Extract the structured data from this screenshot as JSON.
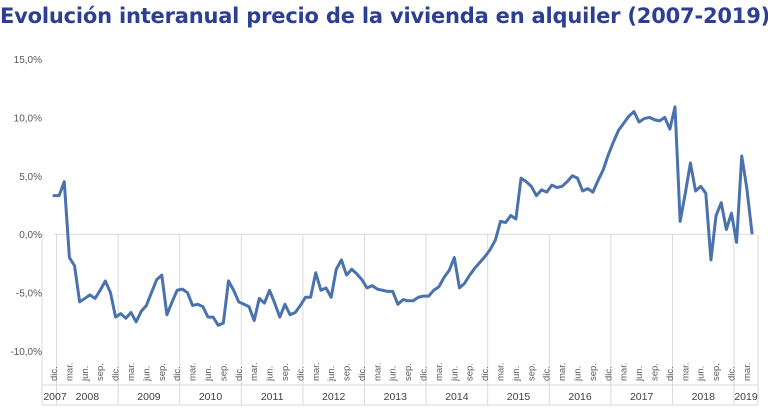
{
  "chart_data": {
    "type": "line",
    "title": "Evolución interanual precio de la vivienda en alquiler (2007-2019)",
    "xlabel": "",
    "ylabel": "",
    "ylim": [
      -10,
      15
    ],
    "y_ticks": [
      {
        "value": 15,
        "label": "15,0%"
      },
      {
        "value": 10,
        "label": "10,0%"
      },
      {
        "value": 5,
        "label": "5,0%"
      },
      {
        "value": 0,
        "label": "0,0%"
      },
      {
        "value": -5,
        "label": "-5,0%"
      },
      {
        "value": -10,
        "label": "-10,0%"
      }
    ],
    "grid": false,
    "legend": "none",
    "line_color": "#4A72AC",
    "title_color": "#2E3F91",
    "start_label": "dic. 2007",
    "month_ticks": [
      {
        "month": 0,
        "label": "dic."
      },
      {
        "month": 3,
        "label": "mar."
      },
      {
        "month": 6,
        "label": "jun."
      },
      {
        "month": 9,
        "label": "sep."
      },
      {
        "month": 12,
        "label": "dic."
      },
      {
        "month": 15,
        "label": "mar."
      },
      {
        "month": 18,
        "label": "jun."
      },
      {
        "month": 21,
        "label": "sep."
      },
      {
        "month": 24,
        "label": "dic."
      },
      {
        "month": 27,
        "label": "mar."
      },
      {
        "month": 30,
        "label": "jun."
      },
      {
        "month": 33,
        "label": "sep."
      },
      {
        "month": 36,
        "label": "dic."
      },
      {
        "month": 39,
        "label": "mar."
      },
      {
        "month": 42,
        "label": "jun."
      },
      {
        "month": 45,
        "label": "sep."
      },
      {
        "month": 48,
        "label": "dic."
      },
      {
        "month": 51,
        "label": "mar."
      },
      {
        "month": 54,
        "label": "jun."
      },
      {
        "month": 57,
        "label": "sep."
      },
      {
        "month": 60,
        "label": "dic."
      },
      {
        "month": 63,
        "label": "mar."
      },
      {
        "month": 66,
        "label": "jun."
      },
      {
        "month": 69,
        "label": "sep."
      },
      {
        "month": 72,
        "label": "dic."
      },
      {
        "month": 75,
        "label": "mar."
      },
      {
        "month": 78,
        "label": "jun."
      },
      {
        "month": 81,
        "label": "sep."
      },
      {
        "month": 84,
        "label": "dic."
      },
      {
        "month": 87,
        "label": "mar."
      },
      {
        "month": 90,
        "label": "jun."
      },
      {
        "month": 93,
        "label": "sep."
      },
      {
        "month": 96,
        "label": "dic."
      },
      {
        "month": 99,
        "label": "mar."
      },
      {
        "month": 102,
        "label": "jun."
      },
      {
        "month": 105,
        "label": "sep."
      },
      {
        "month": 108,
        "label": "dic."
      },
      {
        "month": 111,
        "label": "mar."
      },
      {
        "month": 114,
        "label": "jun."
      },
      {
        "month": 117,
        "label": "sep."
      },
      {
        "month": 120,
        "label": "dic."
      },
      {
        "month": 123,
        "label": "mar."
      },
      {
        "month": 126,
        "label": "jun."
      },
      {
        "month": 129,
        "label": "sep."
      },
      {
        "month": 132,
        "label": "dic."
      },
      {
        "month": 135,
        "label": "mar."
      }
    ],
    "year_groups": [
      {
        "label": "2007",
        "start": 0,
        "end": 0
      },
      {
        "label": "2008",
        "start": 1,
        "end": 12
      },
      {
        "label": "2009",
        "start": 13,
        "end": 24
      },
      {
        "label": "2010",
        "start": 25,
        "end": 36
      },
      {
        "label": "2011",
        "start": 37,
        "end": 48
      },
      {
        "label": "2012",
        "start": 49,
        "end": 60
      },
      {
        "label": "2013",
        "start": 61,
        "end": 72
      },
      {
        "label": "2014",
        "start": 73,
        "end": 84
      },
      {
        "label": "2015",
        "start": 85,
        "end": 96
      },
      {
        "label": "2016",
        "start": 97,
        "end": 108
      },
      {
        "label": "2017",
        "start": 109,
        "end": 120
      },
      {
        "label": "2018",
        "start": 121,
        "end": 132
      },
      {
        "label": "2019",
        "start": 133,
        "end": 136
      }
    ],
    "series": [
      {
        "values": [
          3.3,
          3.3,
          4.5,
          -2.0,
          -2.7,
          -5.8,
          -5.5,
          -5.2,
          -5.5,
          -4.8,
          -4.0,
          -5.0,
          -7.1,
          -6.8,
          -7.2,
          -6.7,
          -7.5,
          -6.6,
          -6.1,
          -5.0,
          -3.9,
          -3.5,
          -6.9,
          -5.8,
          -4.8,
          -4.7,
          -5.0,
          -6.1,
          -6.0,
          -6.2,
          -7.1,
          -7.1,
          -7.8,
          -7.6,
          -4.0,
          -4.8,
          -5.8,
          -6.0,
          -6.2,
          -7.4,
          -5.5,
          -5.9,
          -4.8,
          -5.9,
          -7.1,
          -6.0,
          -6.9,
          -6.7,
          -6.1,
          -5.4,
          -5.4,
          -3.3,
          -4.8,
          -4.6,
          -5.4,
          -3.0,
          -2.2,
          -3.5,
          -3.0,
          -3.4,
          -3.9,
          -4.6,
          -4.4,
          -4.7,
          -4.8,
          -4.9,
          -4.9,
          -6.0,
          -5.6,
          -5.7,
          -5.7,
          -5.4,
          -5.3,
          -5.3,
          -4.8,
          -4.5,
          -3.7,
          -3.1,
          -2.0,
          -4.6,
          -4.2,
          -3.5,
          -2.9,
          -2.4,
          -1.9,
          -1.3,
          -0.5,
          1.1,
          1.0,
          1.6,
          1.3,
          4.8,
          4.5,
          4.1,
          3.3,
          3.8,
          3.6,
          4.2,
          4.0,
          4.1,
          4.5,
          5.0,
          4.8,
          3.7,
          3.9,
          3.6,
          4.6,
          5.5,
          6.8,
          7.9,
          8.9,
          9.5,
          10.1,
          10.5,
          9.6,
          9.9,
          10.0,
          9.8,
          9.7,
          10.0,
          9.0,
          10.9,
          1.1,
          3.5,
          6.1,
          3.7,
          4.1,
          3.5,
          -2.2,
          1.6,
          2.7,
          0.4,
          1.8,
          -0.7,
          6.7,
          3.9,
          0.1
        ]
      }
    ]
  }
}
